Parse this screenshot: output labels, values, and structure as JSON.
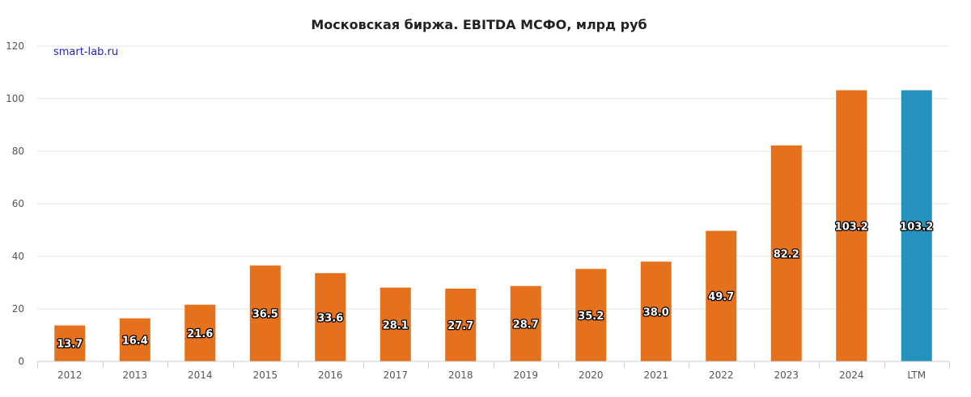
{
  "watermark": "smart-lab.ru",
  "colors": {
    "primary_bar": "#e5711d",
    "highlight_bar": "#2592bd"
  },
  "chart_data": {
    "type": "bar",
    "title": "Московская биржа. EBITDA МСФО, млрд руб",
    "xlabel": "",
    "ylabel": "",
    "ylim": [
      0,
      120
    ],
    "yticks": [
      0,
      20,
      40,
      60,
      80,
      100,
      120
    ],
    "grid": true,
    "categories": [
      "2012",
      "2013",
      "2014",
      "2015",
      "2016",
      "2017",
      "2018",
      "2019",
      "2020",
      "2021",
      "2022",
      "2023",
      "2024",
      "LTM"
    ],
    "values": [
      13.7,
      16.4,
      21.6,
      36.5,
      33.6,
      28.1,
      27.7,
      28.7,
      35.2,
      38.0,
      49.7,
      82.2,
      103.2,
      103.2
    ],
    "value_labels": [
      "13.7",
      "16.4",
      "21.6",
      "36.5",
      "33.6",
      "28.1",
      "27.7",
      "28.7",
      "35.2",
      "38.0",
      "49.7",
      "82.2",
      "103.2",
      "103.2"
    ],
    "highlighted_category": "LTM"
  }
}
